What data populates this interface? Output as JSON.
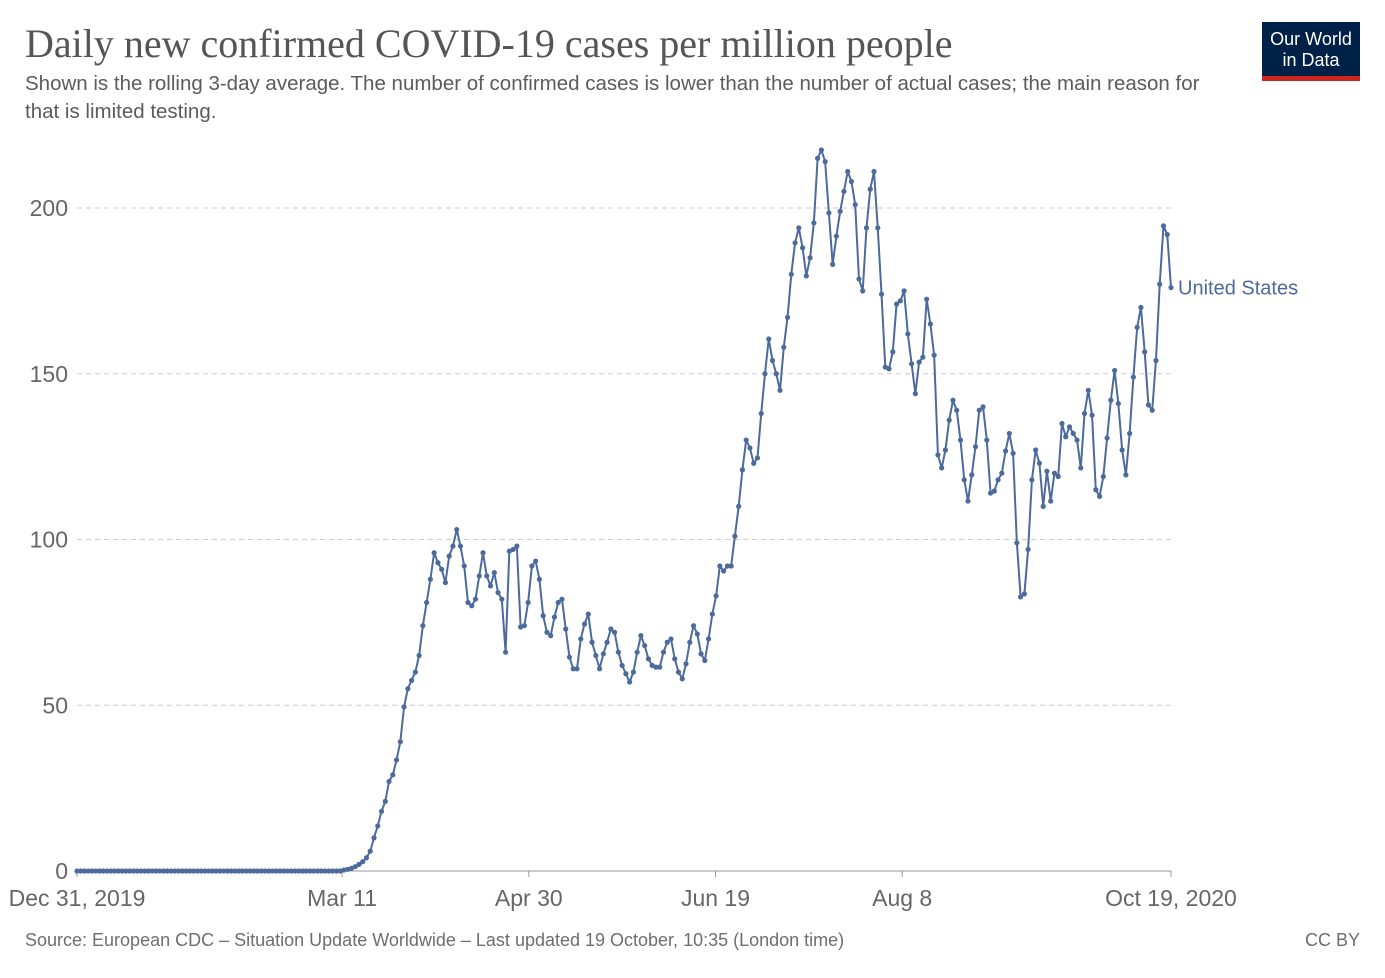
{
  "header": {
    "title": "Daily new confirmed COVID-19 cases per million people",
    "subtitle": "Shown is the rolling 3-day average. The number of confirmed cases is lower than the number of actual cases; the main reason for that is limited testing."
  },
  "logo": {
    "line1": "Our World",
    "line2": "in Data"
  },
  "footer": {
    "source": "Source: European CDC – Situation Update Worldwide – Last updated 19 October, 10:35 (London time)",
    "license": "CC BY"
  },
  "colors": {
    "series": "#4c6a9c",
    "grid": "#cccccc",
    "logo_bg": "#002147",
    "logo_accent": "#ce261e"
  },
  "chart_data": {
    "type": "line",
    "title": "Daily new confirmed COVID-19 cases per million people",
    "xlabel": "",
    "ylabel": "",
    "ylim": [
      0,
      200
    ],
    "yticks": [
      0,
      50,
      100,
      150,
      200
    ],
    "x_start": "Dec 31, 2019",
    "x_end": "Oct 19, 2020",
    "x_total_days": 293,
    "xticks": [
      {
        "label": "Dec 31, 2019",
        "day": 0
      },
      {
        "label": "Mar 11",
        "day": 71
      },
      {
        "label": "Apr 30",
        "day": 121
      },
      {
        "label": "Jun 19",
        "day": 171
      },
      {
        "label": "Aug 8",
        "day": 221
      },
      {
        "label": "Oct 19, 2020",
        "day": 293
      }
    ],
    "grid": true,
    "series": [
      {
        "name": "United States",
        "values": [
          0,
          0,
          0,
          0,
          0,
          0,
          0,
          0,
          0,
          0,
          0,
          0,
          0,
          0,
          0,
          0,
          0,
          0,
          0,
          0,
          0,
          0,
          0,
          0,
          0,
          0,
          0,
          0,
          0,
          0,
          0,
          0,
          0,
          0,
          0,
          0,
          0,
          0,
          0,
          0,
          0,
          0,
          0,
          0,
          0,
          0,
          0,
          0,
          0,
          0,
          0,
          0,
          0,
          0,
          0,
          0,
          0,
          0,
          0,
          0,
          0,
          0,
          0,
          0,
          0,
          0,
          0,
          0,
          0,
          0,
          0,
          0.3,
          0.5,
          0.8,
          1.3,
          2,
          2.8,
          4,
          6,
          10,
          13.6,
          18,
          21,
          27,
          29,
          33.5,
          39,
          49.5,
          55,
          57.5,
          60,
          65,
          74,
          81,
          88,
          96,
          93,
          91,
          87,
          95,
          98,
          103,
          98,
          92,
          81,
          80,
          82,
          89,
          96,
          89,
          86,
          90,
          84,
          82,
          66,
          96.5,
          97,
          98,
          73.6,
          74,
          81,
          92,
          93.5,
          88,
          77,
          72,
          71,
          76.6,
          81,
          82,
          73,
          64.5,
          61,
          61,
          70,
          74.5,
          77.5,
          69,
          65,
          61,
          65.5,
          69,
          73,
          72,
          66,
          62,
          59.5,
          57,
          60,
          66,
          71,
          68,
          64,
          62,
          61.5,
          61.5,
          66,
          69,
          70,
          64,
          60,
          58,
          62.5,
          69,
          74,
          71.5,
          65.5,
          63.5,
          70,
          77.5,
          83,
          92,
          90.5,
          92,
          92,
          101,
          110,
          121,
          130,
          127.6,
          123,
          124.6,
          138,
          150,
          160.5,
          154,
          150,
          145,
          158,
          167,
          180,
          189.5,
          194,
          188,
          179.5,
          185,
          195.5,
          215,
          217.5,
          214,
          198.5,
          183,
          191.5,
          199,
          205,
          211,
          208,
          201,
          178.6,
          175,
          194,
          205.7,
          211,
          194,
          174,
          152,
          151.5,
          156.6,
          171,
          172,
          175,
          162,
          153,
          144,
          153.5,
          155,
          172.5,
          165,
          155.6,
          125.5,
          121.6,
          127,
          136,
          142,
          139,
          130,
          118,
          111.6,
          119.5,
          128,
          139,
          140,
          130,
          114,
          114.6,
          118,
          120,
          126.7,
          132,
          126,
          99,
          82.7,
          83.6,
          97,
          118,
          127,
          123,
          110,
          120.6,
          111.6,
          120,
          119,
          135,
          131,
          134,
          132,
          130,
          121.6,
          138,
          145,
          137.5,
          115,
          113,
          119,
          130.6,
          142,
          151,
          141,
          127,
          119.5,
          132,
          149,
          164,
          170,
          156.6,
          140.6,
          139,
          154,
          177,
          194.6,
          192,
          176
        ]
      }
    ]
  }
}
